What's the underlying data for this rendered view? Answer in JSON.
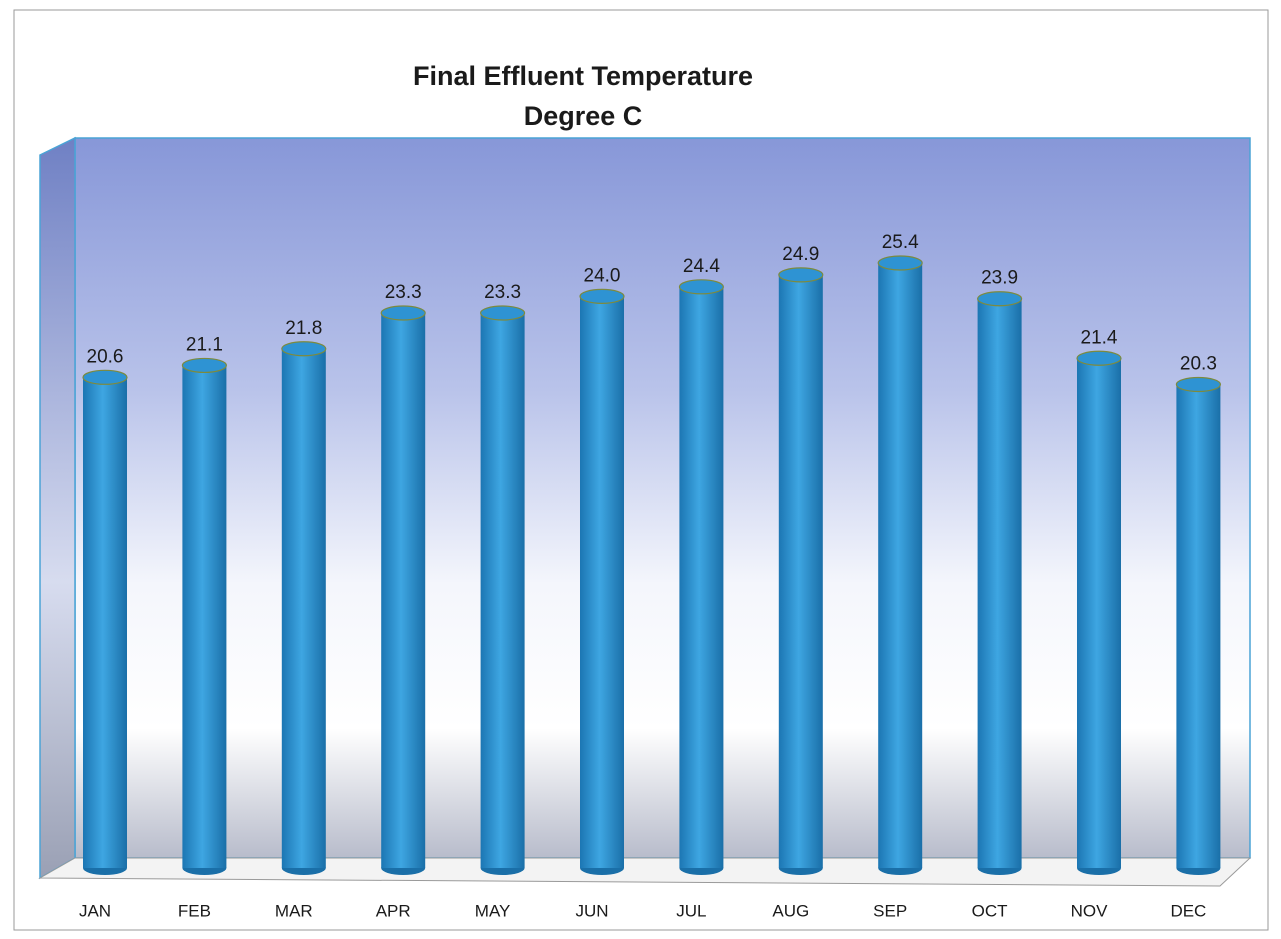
{
  "chart_data": {
    "type": "bar",
    "title": "Final Effluent Temperature",
    "subtitle": "Degree C",
    "categories": [
      "JAN",
      "FEB",
      "MAR",
      "APR",
      "MAY",
      "JUN",
      "JUL",
      "AUG",
      "SEP",
      "OCT",
      "NOV",
      "DEC"
    ],
    "values": [
      20.6,
      21.1,
      21.8,
      23.3,
      23.3,
      24.0,
      24.4,
      24.9,
      25.4,
      23.9,
      21.4,
      20.3
    ],
    "value_labels": [
      "20.6",
      "21.1",
      "21.8",
      "23.3",
      "23.3",
      "24.0",
      "24.4",
      "24.9",
      "25.4",
      "23.9",
      "21.4",
      "20.3"
    ],
    "color": "#2e93d3"
  }
}
